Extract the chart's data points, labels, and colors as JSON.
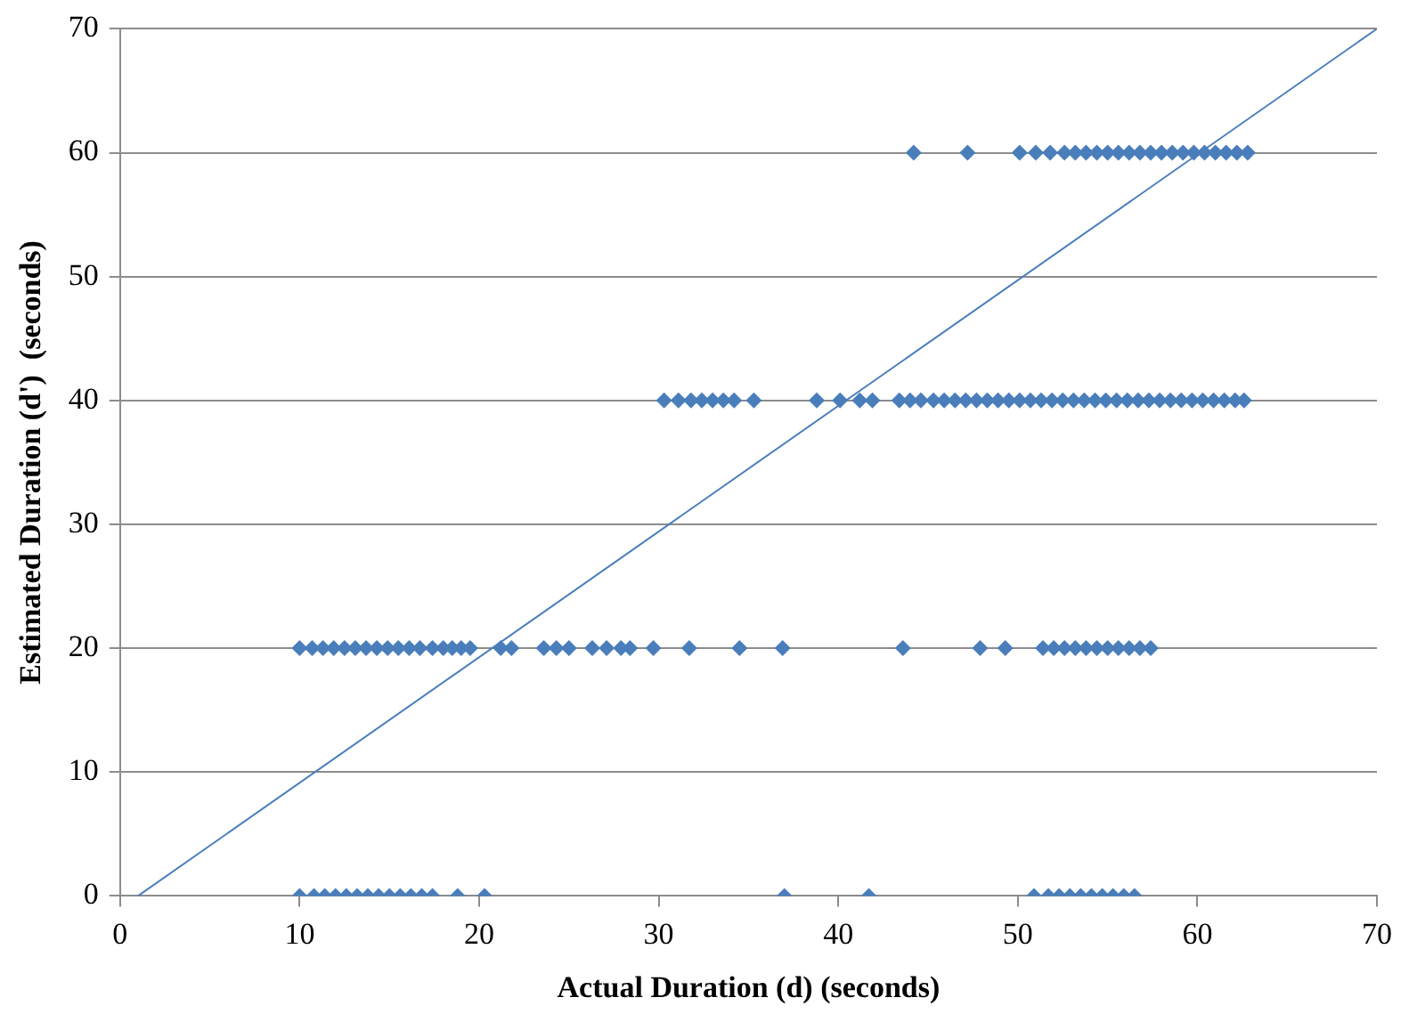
{
  "chart_data": {
    "type": "scatter",
    "xlabel": "Actual Duration (d) (seconds)",
    "ylabel": "Estimated Duration (d')  (seconds)",
    "xlim": [
      0,
      70
    ],
    "xticks": [
      0,
      10,
      20,
      30,
      40,
      50,
      60,
      70
    ],
    "ylim": [
      0,
      70
    ],
    "yticks": [
      0,
      10,
      20,
      30,
      40,
      50,
      60,
      70
    ],
    "grid": "y",
    "legend": false,
    "marker": "diamond",
    "series": [
      {
        "color": "#4a7ebb",
        "x": [
          44.2,
          47.2,
          50.1,
          51.0,
          51.8,
          52.6,
          53.2,
          53.8,
          54.4,
          55.0,
          55.6,
          56.2,
          56.8,
          57.4,
          58.0,
          58.6,
          59.2,
          59.8,
          60.4,
          61.0,
          61.6,
          62.2,
          62.8
        ],
        "values": [
          60,
          60,
          60,
          60,
          60,
          60,
          60,
          60,
          60,
          60,
          60,
          60,
          60,
          60,
          60,
          60,
          60,
          60,
          60,
          60,
          60,
          60,
          60
        ]
      },
      {
        "color": "#4a7ebb",
        "x": [
          30.3,
          31.1,
          31.8,
          32.4,
          33.0,
          33.6,
          34.2,
          35.3,
          38.8,
          40.1,
          41.2,
          41.9,
          43.4,
          44.0,
          44.6,
          45.3,
          45.9,
          46.5,
          47.1,
          47.7,
          48.3,
          48.9,
          49.5,
          50.1,
          50.7,
          51.3,
          51.9,
          52.5,
          53.1,
          53.7,
          54.3,
          54.9,
          55.5,
          56.1,
          56.7,
          57.3,
          57.9,
          58.5,
          59.1,
          59.7,
          60.3,
          60.9,
          61.5,
          62.1,
          62.6
        ],
        "values": [
          40,
          40,
          40,
          40,
          40,
          40,
          40,
          40,
          40,
          40,
          40,
          40,
          40,
          40,
          40,
          40,
          40,
          40,
          40,
          40,
          40,
          40,
          40,
          40,
          40,
          40,
          40,
          40,
          40,
          40,
          40,
          40,
          40,
          40,
          40,
          40,
          40,
          40,
          40,
          40,
          40,
          40,
          40,
          40,
          40
        ]
      },
      {
        "color": "#4a7ebb",
        "x": [
          10.0,
          10.7,
          11.3,
          11.9,
          12.5,
          13.1,
          13.7,
          14.3,
          14.9,
          15.5,
          16.1,
          16.7,
          17.4,
          18.0,
          18.5,
          19.0,
          19.5,
          21.2,
          21.8,
          23.6,
          24.3,
          25.0,
          26.3,
          27.1,
          27.9,
          28.4,
          29.7,
          31.7,
          34.5,
          36.9,
          43.6,
          47.9,
          49.3,
          51.4,
          52.0,
          52.6,
          53.2,
          53.8,
          54.4,
          55.0,
          55.6,
          56.2,
          56.8,
          57.4
        ],
        "values": [
          20,
          20,
          20,
          20,
          20,
          20,
          20,
          20,
          20,
          20,
          20,
          20,
          20,
          20,
          20,
          20,
          20,
          20,
          20,
          20,
          20,
          20,
          20,
          20,
          20,
          20,
          20,
          20,
          20,
          20,
          20,
          20,
          20,
          20,
          20,
          20,
          20,
          20,
          20,
          20,
          20,
          20,
          20,
          20
        ]
      },
      {
        "color": "#4a7ebb",
        "x": [
          10.0,
          10.8,
          11.4,
          12.0,
          12.6,
          13.2,
          13.8,
          14.4,
          15.0,
          15.6,
          16.2,
          16.8,
          17.4,
          18.8,
          20.3,
          37.0,
          41.7,
          50.9,
          51.7,
          52.3,
          52.9,
          53.5,
          54.1,
          54.7,
          55.3,
          55.9,
          56.5
        ],
        "values": [
          0,
          0,
          0,
          0,
          0,
          0,
          0,
          0,
          0,
          0,
          0,
          0,
          0,
          0,
          0,
          0,
          0,
          0,
          0,
          0,
          0,
          0,
          0,
          0,
          0,
          0,
          0
        ]
      },
      {
        "type": "line",
        "color": "#4a7ebb",
        "marker": "none",
        "x": [
          1,
          70
        ],
        "values": [
          0,
          70
        ]
      }
    ]
  }
}
